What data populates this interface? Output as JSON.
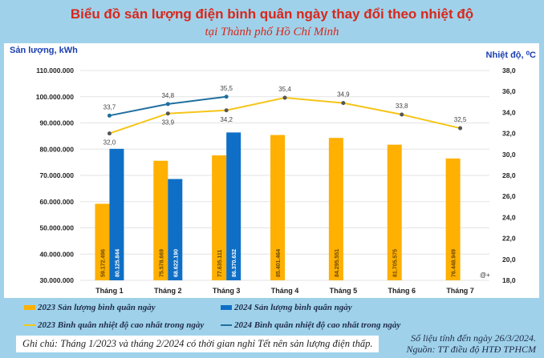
{
  "chart_data": {
    "type": "bar+line",
    "title": "Biểu đồ sản lượng điện bình quân ngày thay đổi theo nhiệt độ",
    "subtitle": "tại Thành phố Hồ Chí Minh",
    "ylabel": "Sản lượng, kWh",
    "y2label": "Nhiệt độ, ⁰C",
    "ylim": [
      30000000,
      110000000
    ],
    "y2lim": [
      18,
      38
    ],
    "yticks": [
      "30.000.000",
      "40.000.000",
      "50.000.000",
      "60.000.000",
      "70.000.000",
      "80.000.000",
      "90.000.000",
      "100.000.000",
      "110.000.000"
    ],
    "y2ticks": [
      "18,0",
      "20,0",
      "22,0",
      "24,0",
      "26,0",
      "28,0",
      "30,0",
      "32,0",
      "34,0",
      "36,0",
      "38,0"
    ],
    "categories": [
      "Tháng 1",
      "Tháng 2",
      "Tháng 3",
      "Tháng 4",
      "Tháng 5",
      "Tháng 6",
      "Tháng 7"
    ],
    "bars": [
      {
        "name": "2023 Sản lượng bình quân ngày",
        "color": "#ffb000",
        "values": [
          59172496,
          75578669,
          77635111,
          85401464,
          84295551,
          81705575,
          76448949
        ],
        "labels": [
          "59.172.496",
          "75.578.669",
          "77.635.111",
          "85.401.464",
          "84.295.551",
          "81.705.575",
          "76.448.949"
        ]
      },
      {
        "name": "2024 Sản lượng bình quân ngày",
        "color": "#0f6fc6",
        "values": [
          80125844,
          68622190,
          86370632
        ],
        "labels": [
          "80.125.844",
          "68.622.190",
          "86.370.632"
        ]
      }
    ],
    "lines": [
      {
        "name": "2023 Bình quân nhiệt độ cao nhất trong ngày",
        "color": "#f5c518",
        "values": [
          32.0,
          33.9,
          34.2,
          35.4,
          34.9,
          33.8,
          32.5
        ],
        "labels": [
          "32,0",
          "33,9",
          "34,2",
          "35,4",
          "34,9",
          "33,8",
          "32,5"
        ]
      },
      {
        "name": "2024 Bình quân nhiệt độ cao nhất trong ngày",
        "color": "#1f6f9f",
        "values": [
          33.7,
          34.8,
          35.5
        ],
        "labels": [
          "33,7",
          "34,8",
          "35,5"
        ]
      }
    ],
    "grid": true,
    "legend": "bottom"
  },
  "watermark": "@+",
  "note": "Ghi chú: Tháng 1/2023 và tháng 2/2024 có thời gian nghỉ Tết nên sản lượng điện thấp.",
  "source_date": "Số liệu tính đến ngày 26/3/2024.",
  "source": "Nguồn: TT điều độ HTĐ TPHCM"
}
